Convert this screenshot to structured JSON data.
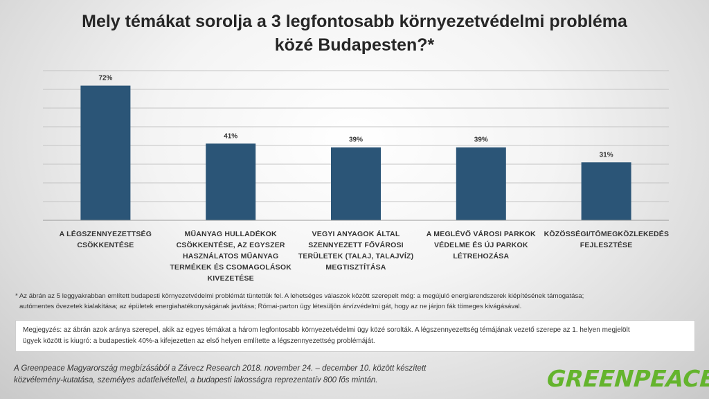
{
  "chart_data": {
    "type": "bar",
    "title": "Mely témákat sorolja a 3 legfontosabb környezetvédelmi probléma közé Budapesten?*",
    "title_lines": [
      "Mely témákat sorolja a 3 legfontosabb környezetvédelmi probléma",
      "közé Budapesten?*"
    ],
    "categories": [
      "A LÉGSZENNYEZETTSÉG\nCSÖKKENTÉSE",
      "MŰANYAG HULLADÉKOK\nCSÖKKENTÉSE, AZ EGYSZER\nHASZNÁLATOS MŰANYAG\nTERMÉKEK ÉS CSOMAGOLÁSOK\nKIVEZETÉSE",
      "VEGYI ANYAGOK ÁLTAL\nSZENNYEZETT FŐVÁROSI\nTERÜLETEK (TALAJ, TALAJVÍZ)\nMEGTISZTÍTÁSA",
      "A MEGLÉVŐ VÁROSI PARKOK\nVÉDELME ÉS ÚJ PARKOK\nLÉTREHOZÁSA",
      "KÖZÖSSÉGI/TÖMEGKÖZLEKEDÉS\nFEJLESZTÉSE"
    ],
    "values": [
      72,
      41,
      39,
      39,
      31
    ],
    "value_labels": [
      "72%",
      "41%",
      "39%",
      "39%",
      "31%"
    ],
    "ylim": [
      0,
      80
    ],
    "grid": true,
    "bar_color": "#2b5577"
  },
  "footnote": {
    "line1": "* Az ábrán az 5 leggyakrabban említett budapesti környezetvédelmi problémát tüntettük fel. A lehetséges válaszok között szerepelt még: a megújuló energiarendszerek kiépítésének támogatása;",
    "line2": "autómentes övezetek kialakítása; az épületek energiahatékonyságának javítása; Római-parton ügy létesüljön árvízvédelmi gát, hogy az ne járjon fák tömeges kivágásával."
  },
  "note": {
    "line1": "Megjegyzés: az ábrán azok aránya szerepel, akik az egyes témákat a három legfontosabb környezetvédelmi ügy közé sorolták. A légszennyezettség témájának vezető szerepe az 1. helyen megjelölt",
    "line2": "ügyek között is kiugró: a budapestiek 40%-a kifejezetten az első helyen említette a légszennyezettség problémáját."
  },
  "source": {
    "line1": "A Greenpeace Magyarország megbízásából a Závecz Research 2018. november 24. – december 10. között készített",
    "line2": "közvélemény-kutatása, személyes adatfelvétellel, a budapesti lakosságra reprezentatív 800 fős mintán."
  },
  "logo": {
    "text": "GREENPEACE",
    "color": "#64b42d"
  }
}
